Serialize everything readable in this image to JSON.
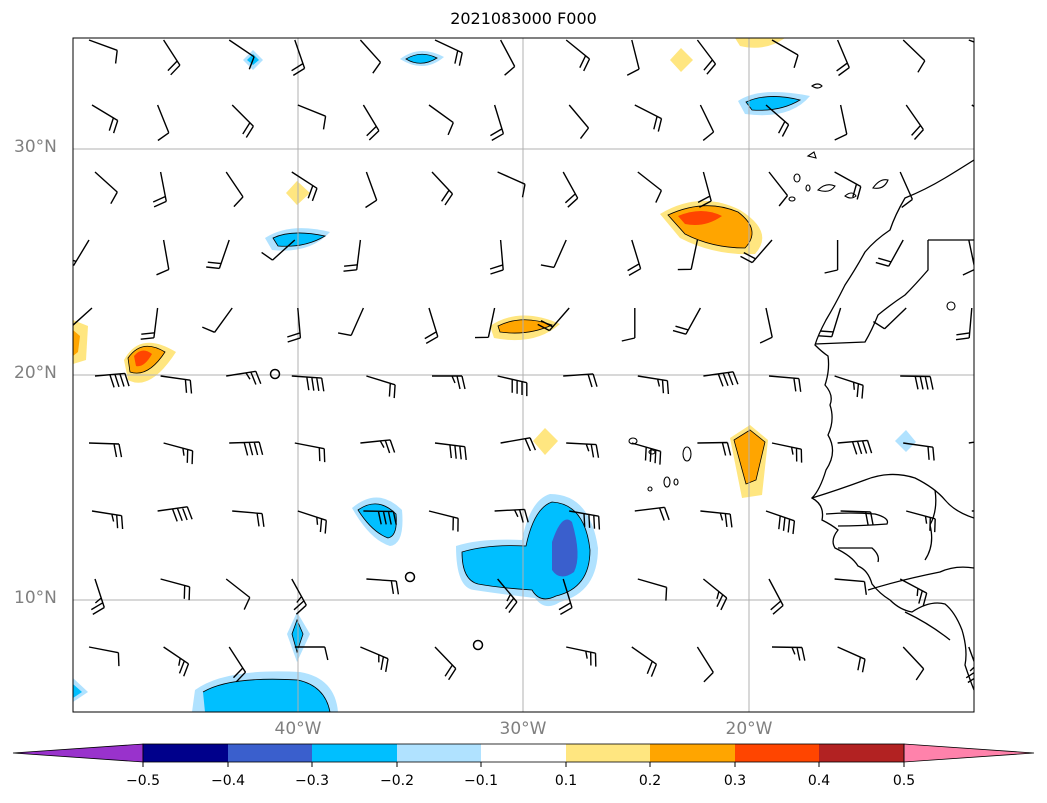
{
  "title": "2021083000 F000",
  "lat_labels": [
    "30°N",
    "20°N",
    "10°N"
  ],
  "lon_labels": [
    "40°W",
    "30°W",
    "20°W"
  ],
  "colorbar": {
    "tick_labels": [
      "−0.5",
      "−0.4",
      "−0.3",
      "−0.2",
      "−0.1",
      "0.1",
      "0.2",
      "0.3",
      "0.4",
      "0.5"
    ],
    "colors": [
      "#9932cc",
      "#00008b",
      "#3a5fcd",
      "#00bfff",
      "#b0e2ff",
      "#ffffff",
      "#ffe680",
      "#ffa500",
      "#ff4500",
      "#b22222",
      "#ff82ab"
    ]
  },
  "colors": {
    "grid": "#b0b0b0",
    "coast": "#000000",
    "label_gray": "#808080"
  }
}
